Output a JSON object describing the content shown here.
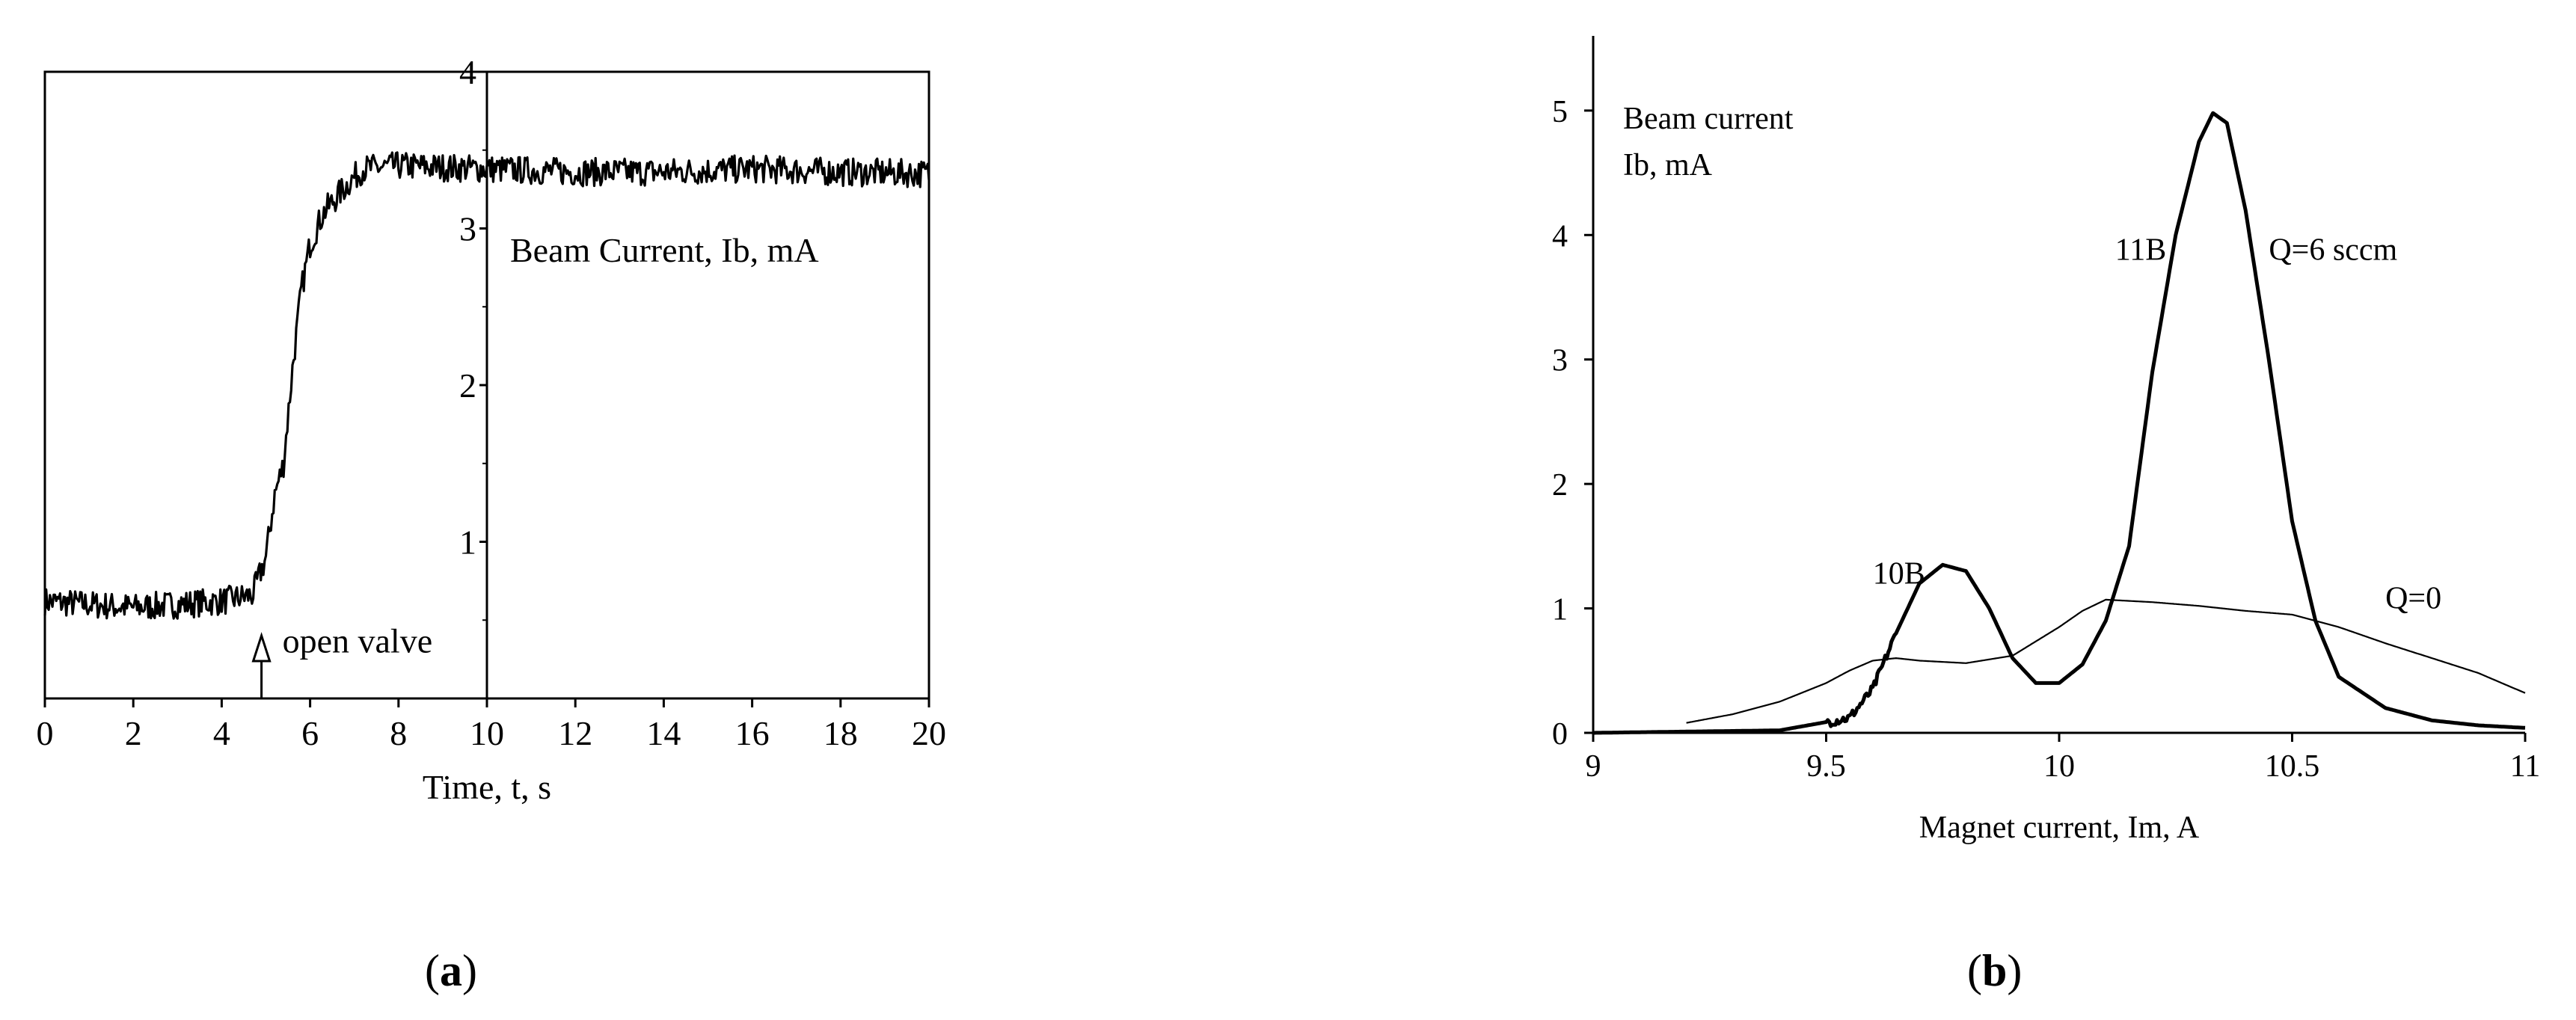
{
  "chart_data": [
    {
      "panel": "a",
      "type": "line",
      "panel_label_open": "(",
      "panel_label_letter": "a",
      "panel_label_close": ")",
      "xlabel": "Time, t, s",
      "ylabel": "Beam Current, Ib, mA",
      "xlim": [
        0,
        20
      ],
      "ylim": [
        0,
        4
      ],
      "xticks": [
        0,
        2,
        4,
        6,
        8,
        10,
        12,
        14,
        16,
        18,
        20
      ],
      "yticks": [
        1,
        2,
        3,
        4
      ],
      "y_axis_at_x": 10,
      "grid": false,
      "annotation": {
        "text": "open valve",
        "x": 4.9,
        "y": 0.35
      },
      "series": [
        {
          "x": [
            0,
            2,
            4,
            4.7,
            5.0,
            5.2,
            5.4,
            5.6,
            5.8,
            6.0,
            6.3,
            6.6,
            6.9,
            7.2,
            8,
            10,
            12,
            14,
            16,
            18,
            20
          ],
          "y": [
            0.62,
            0.58,
            0.62,
            0.66,
            0.9,
            1.3,
            1.5,
            2.1,
            2.6,
            2.9,
            3.1,
            3.2,
            3.3,
            3.38,
            3.4,
            3.38,
            3.36,
            3.36,
            3.38,
            3.36,
            3.35
          ],
          "noise": 0.09
        }
      ]
    },
    {
      "panel": "b",
      "type": "line",
      "panel_label_open": "(",
      "panel_label_letter": "b",
      "panel_label_close": ")",
      "xlabel": "Magnet current, Im, A",
      "ylabel_line1": "Beam current",
      "ylabel_line2": "Ib, mA",
      "xlim": [
        9,
        11
      ],
      "ylim": [
        0,
        5.6
      ],
      "xticks": [
        9,
        9.5,
        10,
        10.5,
        11
      ],
      "yticks": [
        0,
        1,
        2,
        3,
        4,
        5
      ],
      "grid": false,
      "annotations": [
        {
          "text": "10B",
          "x": 9.6,
          "y": 1.2
        },
        {
          "text": "11B",
          "x": 10.12,
          "y": 3.8
        },
        {
          "text": "Q=6 sccm",
          "x": 10.45,
          "y": 3.8
        },
        {
          "text": "Q=0",
          "x": 10.7,
          "y": 1.0
        }
      ],
      "series": [
        {
          "name": "Q=6 sccm",
          "x": [
            9.0,
            9.4,
            9.55,
            9.6,
            9.65,
            9.7,
            9.75,
            9.8,
            9.85,
            9.9,
            9.95,
            10.0,
            10.05,
            10.1,
            10.15,
            10.2,
            10.25,
            10.3,
            10.33,
            10.36,
            10.4,
            10.45,
            10.5,
            10.55,
            10.6,
            10.7,
            10.8,
            10.9,
            11.0
          ],
          "y": [
            0.0,
            0.02,
            0.12,
            0.35,
            0.8,
            1.2,
            1.35,
            1.3,
            1.0,
            0.6,
            0.4,
            0.4,
            0.55,
            0.9,
            1.5,
            2.9,
            4.0,
            4.75,
            4.98,
            4.9,
            4.2,
            3.0,
            1.7,
            0.9,
            0.45,
            0.2,
            0.1,
            0.06,
            0.04
          ]
        },
        {
          "name": "Q=0",
          "x": [
            9.2,
            9.3,
            9.4,
            9.5,
            9.55,
            9.6,
            9.65,
            9.7,
            9.8,
            9.9,
            10.0,
            10.05,
            10.1,
            10.15,
            10.2,
            10.3,
            10.4,
            10.5,
            10.6,
            10.7,
            10.8,
            10.9,
            11.0
          ],
          "y": [
            0.08,
            0.15,
            0.25,
            0.4,
            0.5,
            0.58,
            0.6,
            0.58,
            0.56,
            0.62,
            0.85,
            0.98,
            1.07,
            1.06,
            1.05,
            1.02,
            0.98,
            0.95,
            0.85,
            0.72,
            0.6,
            0.48,
            0.32
          ]
        }
      ]
    }
  ]
}
